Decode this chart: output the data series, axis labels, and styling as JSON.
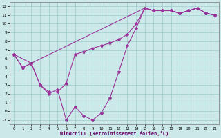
{
  "xlabel": "Windchill (Refroidissement éolien,°C)",
  "bg_color": "#cce8e8",
  "grid_color": "#99cccc",
  "line_color": "#993399",
  "xlim": [
    -0.5,
    23.5
  ],
  "ylim": [
    -1.5,
    12.5
  ],
  "xticks": [
    0,
    1,
    2,
    3,
    4,
    5,
    6,
    7,
    8,
    9,
    10,
    11,
    12,
    13,
    14,
    15,
    16,
    17,
    18,
    19,
    20,
    21,
    22,
    23
  ],
  "yticks": [
    -1,
    0,
    1,
    2,
    3,
    4,
    5,
    6,
    7,
    8,
    9,
    10,
    11,
    12
  ],
  "line1_x": [
    0,
    1,
    2,
    3,
    4,
    5,
    6,
    7,
    8,
    9,
    10,
    11,
    12,
    13,
    14,
    15,
    16,
    17,
    18,
    19,
    20,
    21,
    22,
    23
  ],
  "line1_y": [
    6.5,
    5.0,
    5.5,
    3.0,
    2.2,
    2.2,
    3.2,
    6.5,
    6.8,
    7.2,
    7.5,
    7.8,
    8.2,
    8.8,
    10.0,
    11.8,
    11.5,
    11.5,
    11.5,
    11.2,
    11.5,
    11.8,
    11.2,
    11.0
  ],
  "line2_x": [
    0,
    1,
    2,
    3,
    4,
    5,
    6,
    7,
    8,
    9,
    10,
    11,
    12,
    13,
    14,
    15,
    16,
    17,
    18,
    19,
    20,
    21,
    22,
    23
  ],
  "line2_y": [
    6.5,
    5.0,
    5.5,
    3.0,
    2.0,
    2.5,
    -1.0,
    0.5,
    -0.5,
    -1.0,
    -0.2,
    1.5,
    4.5,
    7.5,
    9.5,
    11.8,
    11.5,
    11.5,
    11.5,
    11.2,
    11.5,
    11.8,
    11.2,
    11.0
  ],
  "line3_x": [
    0,
    2,
    15,
    16,
    17,
    18,
    19,
    20,
    21,
    22,
    23
  ],
  "line3_y": [
    6.5,
    5.5,
    11.8,
    11.5,
    11.5,
    11.5,
    11.2,
    11.5,
    11.8,
    11.2,
    11.0
  ]
}
